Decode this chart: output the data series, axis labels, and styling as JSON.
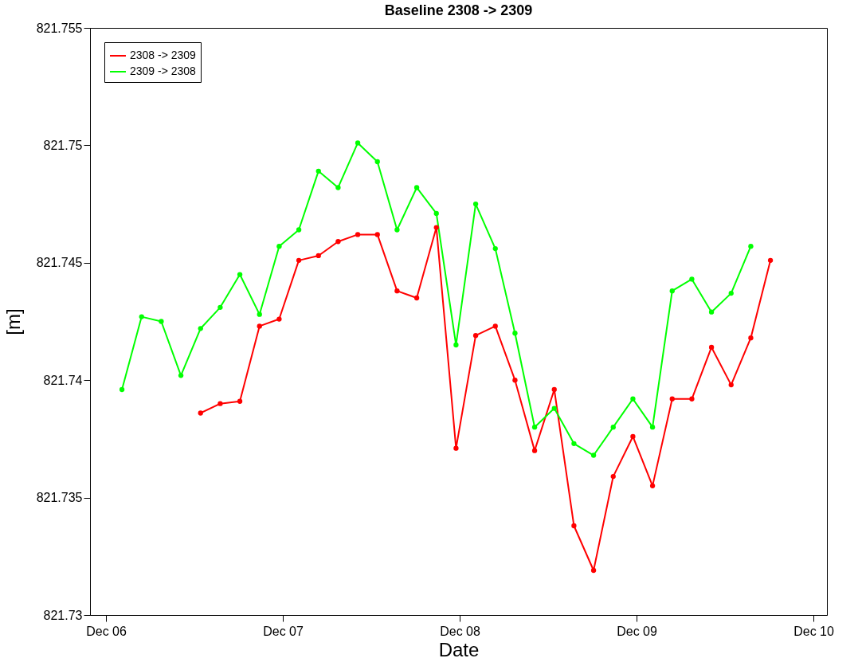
{
  "chart_data": {
    "type": "line",
    "title": "Baseline 2308 -> 2309",
    "xlabel": "Date",
    "ylabel": "[m]",
    "xlim": [
      "--12-05T21:50",
      "--12-10T01:50"
    ],
    "xticks": [
      {
        "value": "--12-06T00:00",
        "label": "Dec 06"
      },
      {
        "value": "--12-07T00:00",
        "label": "Dec 07"
      },
      {
        "value": "--12-08T00:00",
        "label": "Dec 08"
      },
      {
        "value": "--12-09T00:00",
        "label": "Dec 09"
      },
      {
        "value": "--12-10T00:00",
        "label": "Dec 10"
      }
    ],
    "ylim": [
      821.73,
      821.755
    ],
    "yticks": [
      821.73,
      821.735,
      821.74,
      821.745,
      821.75,
      821.755
    ],
    "grid": false,
    "legend": "top left",
    "marker": "circle",
    "line_style": "solid",
    "series": [
      {
        "name": "2308 -> 2309",
        "color": "#ff0000",
        "x": [
          "--12-06T12:50",
          "--12-06T15:30",
          "--12-06T18:10",
          "--12-06T20:50",
          "--12-06T23:30",
          "--12-07T02:10",
          "--12-07T04:50",
          "--12-07T07:30",
          "--12-07T10:10",
          "--12-07T12:50",
          "--12-07T15:30",
          "--12-07T18:10",
          "--12-07T20:50",
          "--12-07T23:30",
          "--12-08T02:10",
          "--12-08T04:50",
          "--12-08T07:30",
          "--12-08T10:10",
          "--12-08T12:50",
          "--12-08T15:30",
          "--12-08T18:10",
          "--12-08T20:50",
          "--12-08T23:30",
          "--12-09T02:10",
          "--12-09T04:50",
          "--12-09T07:30",
          "--12-09T10:10",
          "--12-09T12:50",
          "--12-09T15:30",
          "--12-09T18:10"
        ],
        "values": [
          821.7386,
          821.739,
          821.7391,
          821.7423,
          821.7426,
          821.7451,
          821.7453,
          821.7459,
          821.7462,
          821.7462,
          821.7438,
          821.7435,
          821.7465,
          821.7371,
          821.7419,
          821.7423,
          821.74,
          821.737,
          821.7396,
          821.7338,
          821.7319,
          821.7359,
          821.7376,
          821.7355,
          821.7392,
          821.7392,
          821.7414,
          821.7398,
          821.7418,
          821.7451
        ]
      },
      {
        "name": "2309 -> 2308",
        "color": "#00ff00",
        "x": [
          "--12-06T02:10",
          "--12-06T04:50",
          "--12-06T07:30",
          "--12-06T10:10",
          "--12-06T12:50",
          "--12-06T15:30",
          "--12-06T18:10",
          "--12-06T20:50",
          "--12-06T23:30",
          "--12-07T02:10",
          "--12-07T04:50",
          "--12-07T07:30",
          "--12-07T10:10",
          "--12-07T12:50",
          "--12-07T15:30",
          "--12-07T18:10",
          "--12-07T20:50",
          "--12-07T23:30",
          "--12-08T02:10",
          "--12-08T04:50",
          "--12-08T07:30",
          "--12-08T10:10",
          "--12-08T12:50",
          "--12-08T15:30",
          "--12-08T18:10",
          "--12-08T20:50",
          "--12-08T23:30",
          "--12-09T02:10",
          "--12-09T04:50",
          "--12-09T07:30",
          "--12-09T10:10",
          "--12-09T12:50",
          "--12-09T15:30"
        ],
        "values": [
          821.7396,
          821.7427,
          821.7425,
          821.7402,
          821.7422,
          821.7431,
          821.7445,
          821.7428,
          821.7457,
          821.7464,
          821.7489,
          821.7482,
          821.7501,
          821.7493,
          821.7464,
          821.7482,
          821.7471,
          821.7415,
          821.7475,
          821.7456,
          821.742,
          821.738,
          821.7388,
          821.7373,
          821.7368,
          821.738,
          821.7392,
          821.738,
          821.7438,
          821.7443,
          821.7429,
          821.7437,
          821.7457
        ]
      }
    ]
  }
}
